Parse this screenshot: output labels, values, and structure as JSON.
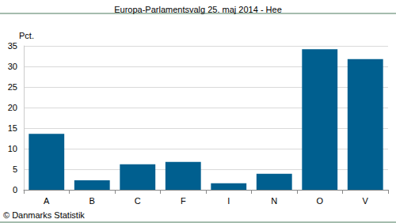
{
  "chart_data": {
    "type": "bar",
    "title": "Europa-Parlamentsvalg 25. maj 2014 - Hee",
    "ylabel": "Pct.",
    "annotations": [
      "© Danmarks Statistik"
    ],
    "categories": [
      "A",
      "B",
      "C",
      "F",
      "I",
      "N",
      "O",
      "V"
    ],
    "values": [
      13.6,
      2.3,
      6.2,
      6.8,
      1.6,
      3.9,
      34.2,
      31.8
    ],
    "color": "#005f8f",
    "ylim": [
      0,
      35
    ],
    "yticks": [
      0,
      5,
      10,
      15,
      20,
      25,
      30,
      35
    ],
    "grid": true
  }
}
